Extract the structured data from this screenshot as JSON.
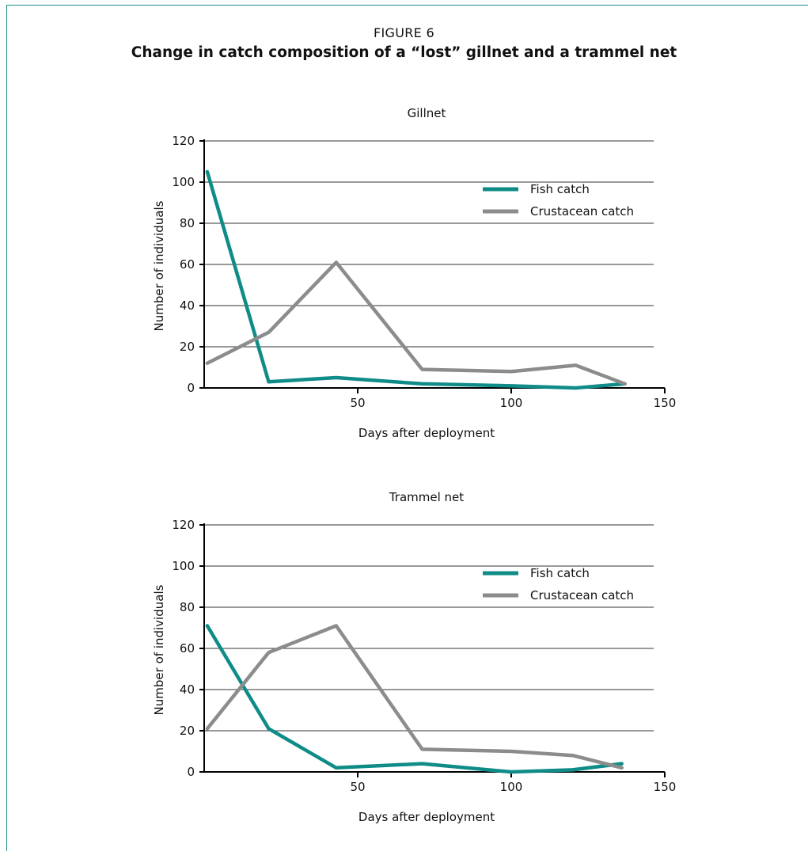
{
  "figure": {
    "label": "FIGURE 6",
    "title": "Change in catch composition of a “lost” gillnet and a trammel net"
  },
  "colors": {
    "fish": "#0f8c87",
    "crustacean": "#8c8c8c",
    "frame": "#1a8f8a"
  },
  "chart_data": [
    {
      "type": "line",
      "title": "Gillnet",
      "xlabel": "Days after deployment",
      "ylabel": "Number of individuals",
      "xlim": [
        0,
        150
      ],
      "ylim": [
        0,
        120
      ],
      "xticks": [
        50,
        100,
        150
      ],
      "yticks": [
        0,
        20,
        40,
        60,
        80,
        100,
        120
      ],
      "grid": true,
      "legend": "top-right",
      "series": [
        {
          "name": "Fish catch",
          "color": "#0f8c87",
          "x": [
            1,
            21,
            43,
            71,
            100,
            121,
            137
          ],
          "y": [
            105,
            3,
            5,
            2,
            1,
            0,
            2
          ]
        },
        {
          "name": "Crustacean catch",
          "color": "#8c8c8c",
          "x": [
            1,
            21,
            43,
            71,
            100,
            121,
            137
          ],
          "y": [
            12,
            27,
            61,
            9,
            8,
            11,
            2
          ]
        }
      ]
    },
    {
      "type": "line",
      "title": "Trammel net",
      "xlabel": "Days after deployment",
      "ylabel": "Number of individuals",
      "xlim": [
        0,
        150
      ],
      "ylim": [
        0,
        120
      ],
      "xticks": [
        50,
        100,
        150
      ],
      "yticks": [
        0,
        20,
        40,
        60,
        80,
        100,
        120
      ],
      "grid": true,
      "legend": "top-right",
      "series": [
        {
          "name": "Fish catch",
          "color": "#0f8c87",
          "x": [
            1,
            21,
            43,
            71,
            100,
            120,
            136
          ],
          "y": [
            71,
            21,
            2,
            4,
            0,
            1,
            4
          ]
        },
        {
          "name": "Crustacean catch",
          "color": "#8c8c8c",
          "x": [
            1,
            21,
            43,
            71,
            100,
            120,
            136
          ],
          "y": [
            21,
            58,
            71,
            11,
            10,
            8,
            2
          ]
        }
      ]
    }
  ]
}
